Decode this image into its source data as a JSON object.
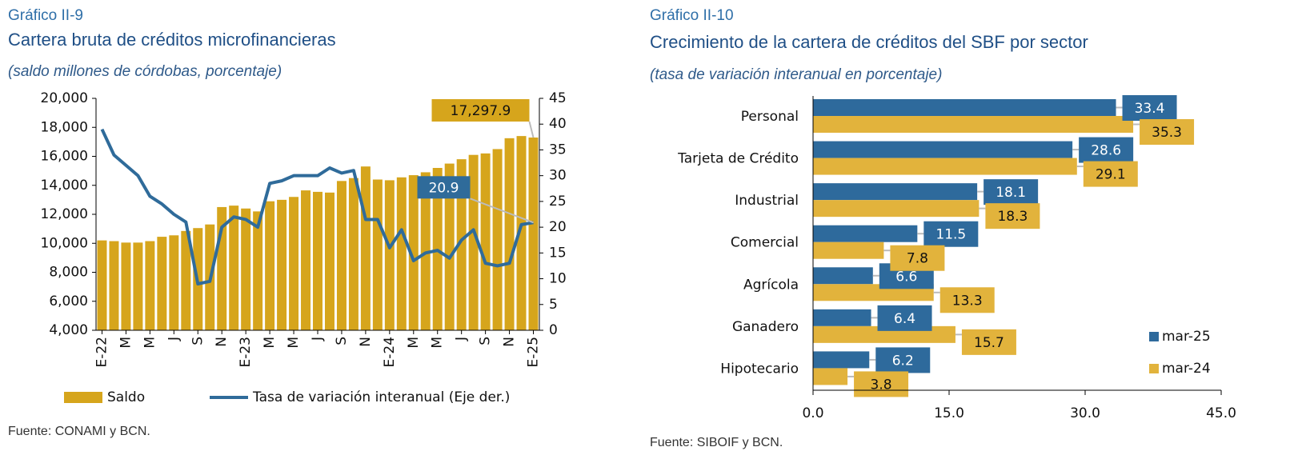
{
  "chart_data": [
    {
      "type": "combo",
      "figure_number": "Gráfico II-9",
      "title": "Cartera bruta de créditos microfinancieras",
      "subtitle": "(saldo millones de córdobas, porcentaje)",
      "source": "Fuente: CONAMI y BCN.",
      "categories": [
        "E-22",
        null,
        "M",
        null,
        "M",
        null,
        "J",
        null,
        "S",
        null,
        "N",
        null,
        "E-23",
        null,
        "M",
        null,
        "M",
        null,
        "J",
        null,
        "S",
        null,
        "N",
        null,
        "E-24",
        null,
        "M",
        null,
        "M",
        null,
        "J",
        null,
        "S",
        null,
        "N",
        null,
        "E-25"
      ],
      "series": [
        {
          "name": "Saldo",
          "type": "bar",
          "color": "#d6a51c",
          "values": [
            10200,
            10150,
            10050,
            10050,
            10150,
            10450,
            10550,
            10850,
            11050,
            11300,
            12500,
            12600,
            12400,
            12200,
            12900,
            13000,
            13200,
            13650,
            13550,
            13500,
            14300,
            14500,
            15300,
            14400,
            14350,
            14550,
            14700,
            14900,
            15200,
            15500,
            15800,
            16100,
            16200,
            16500,
            17250,
            17400,
            17297.9
          ],
          "value_labels": [
            null,
            null,
            null,
            null,
            null,
            null,
            null,
            null,
            null,
            null,
            null,
            null,
            null,
            null,
            null,
            null,
            null,
            null,
            null,
            null,
            null,
            null,
            null,
            null,
            null,
            null,
            null,
            null,
            null,
            null,
            null,
            null,
            null,
            null,
            null,
            null,
            "17,297.9"
          ]
        },
        {
          "name": "Tasa de variación interanual (Eje der.)",
          "type": "line",
          "axis": "y2",
          "color": "#2f6b9a",
          "values": [
            39,
            34,
            32,
            30,
            26,
            24.5,
            22.5,
            21,
            9,
            9.5,
            20,
            22,
            21.5,
            20,
            28.5,
            29,
            30,
            30,
            30,
            31.5,
            30.5,
            31,
            21.5,
            21.5,
            16,
            19.5,
            13.5,
            15,
            15.5,
            14,
            17.5,
            19.5,
            13,
            12.5,
            13,
            20.5,
            20.9
          ],
          "value_labels": [
            null,
            null,
            null,
            null,
            null,
            null,
            null,
            null,
            null,
            null,
            null,
            null,
            null,
            null,
            null,
            null,
            null,
            null,
            null,
            null,
            null,
            null,
            null,
            null,
            null,
            null,
            null,
            null,
            null,
            null,
            null,
            null,
            null,
            null,
            null,
            null,
            "20.9"
          ]
        }
      ],
      "ylim": [
        4000,
        20000
      ],
      "yticks": [
        {
          "value": 4000,
          "label": "4,000"
        },
        {
          "value": 6000,
          "label": "6,000"
        },
        {
          "value": 8000,
          "label": "8,000"
        },
        {
          "value": 10000,
          "label": "10,000"
        },
        {
          "value": 12000,
          "label": "12,000"
        },
        {
          "value": 14000,
          "label": "14,000"
        },
        {
          "value": 16000,
          "label": "16,000"
        },
        {
          "value": 18000,
          "label": "18,000"
        },
        {
          "value": 20000,
          "label": "20,000"
        }
      ],
      "y2lim": [
        0,
        45
      ],
      "y2ticks": [
        0,
        5,
        10,
        15,
        20,
        25,
        30,
        35,
        40,
        45
      ],
      "legend": "bottom"
    },
    {
      "type": "barh",
      "figure_number": "Gráfico II-10",
      "title": "Crecimiento de la cartera de créditos del SBF por sector",
      "subtitle": "(tasa de variación interanual en porcentaje)",
      "source": "Fuente: SIBOIF y BCN.",
      "categories": [
        "Personal",
        "Tarjeta de Crédito",
        "Industrial",
        "Comercial",
        "Agrícola",
        "Ganadero",
        "Hipotecario"
      ],
      "series": [
        {
          "name": "mar-25",
          "color": "#2e6a9c",
          "values": [
            33.4,
            28.6,
            18.1,
            11.5,
            6.6,
            6.4,
            6.2
          ]
        },
        {
          "name": "mar-24",
          "color": "#e2b33c",
          "values": [
            35.3,
            29.1,
            18.3,
            7.8,
            13.3,
            15.7,
            3.8
          ]
        }
      ],
      "xlim": [
        0,
        45
      ],
      "xticks": [
        {
          "value": 0,
          "label": "0.0"
        },
        {
          "value": 15,
          "label": "15.0"
        },
        {
          "value": 30,
          "label": "30.0"
        },
        {
          "value": 45,
          "label": "45.0"
        }
      ],
      "legend": "lower right"
    }
  ]
}
